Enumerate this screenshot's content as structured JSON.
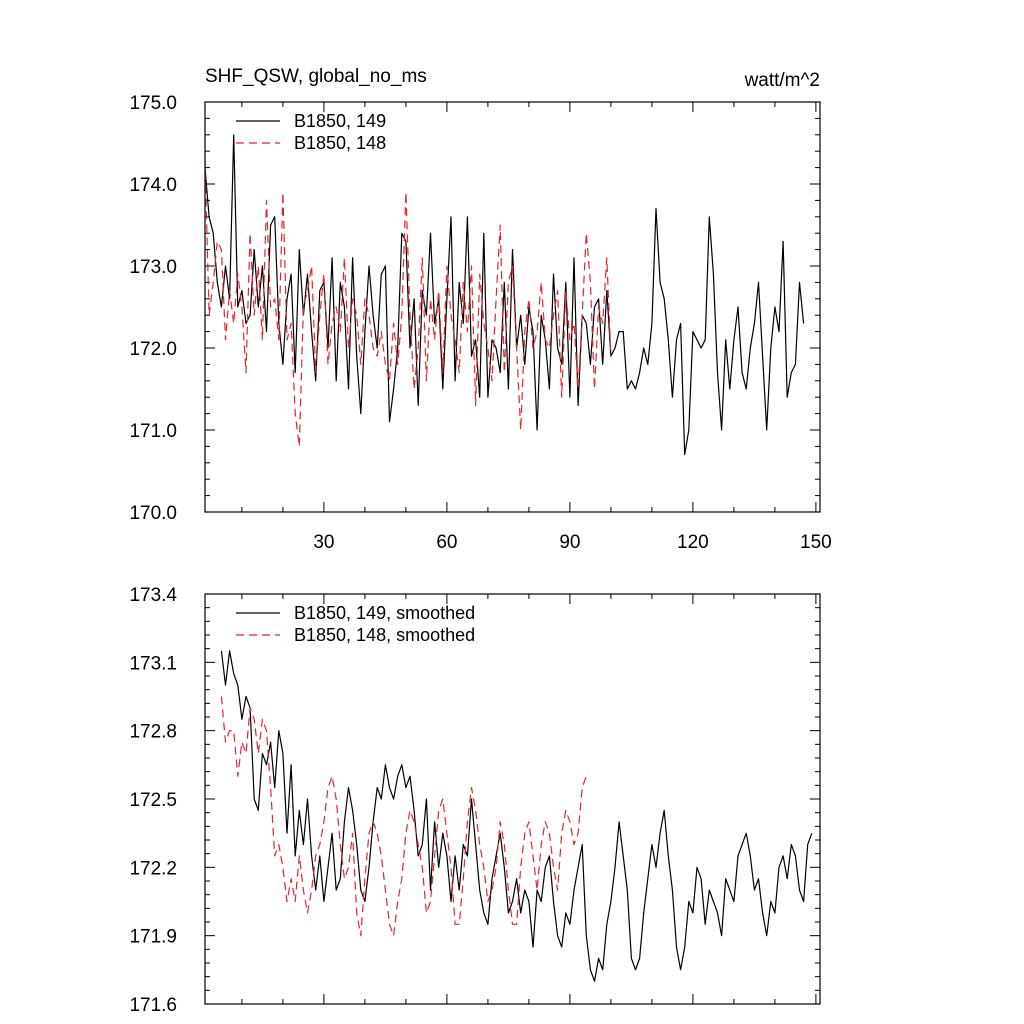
{
  "chart_data": [
    {
      "type": "line",
      "title": "SHF_QSW, global_no_ms",
      "units": "watt/m^2",
      "xlim": [
        1,
        151
      ],
      "ylim": [
        170.0,
        175.0
      ],
      "xticks": [
        30,
        60,
        90,
        120,
        150
      ],
      "xtick_labels": [
        "30",
        "60",
        "90",
        "120",
        "150"
      ],
      "yticks": [
        170.0,
        171.0,
        172.0,
        173.0,
        174.0,
        175.0
      ],
      "ytick_labels": [
        "170.0",
        "171.0",
        "172.0",
        "173.0",
        "174.0",
        "175.0"
      ],
      "legend_position": "top-left",
      "series": [
        {
          "name": "B1850, 149",
          "color": "#000000",
          "dash": "solid",
          "x_start": 1,
          "values": [
            174.2,
            173.6,
            173.4,
            172.8,
            172.5,
            173.0,
            172.6,
            174.6,
            172.5,
            172.7,
            172.3,
            172.4,
            173.2,
            172.5,
            173.0,
            172.2,
            173.5,
            173.6,
            172.3,
            171.8,
            172.6,
            172.9,
            171.7,
            173.2,
            172.4,
            172.9,
            172.2,
            171.6,
            172.7,
            172.8,
            172.0,
            173.1,
            171.6,
            172.8,
            172.5,
            171.5,
            173.1,
            171.9,
            171.2,
            172.2,
            173.0,
            172.4,
            172.0,
            172.9,
            173.0,
            171.1,
            171.5,
            172.0,
            173.4,
            173.3,
            172.0,
            172.6,
            171.3,
            172.7,
            172.4,
            173.4,
            172.3,
            172.6,
            171.5,
            172.6,
            173.6,
            171.6,
            172.8,
            172.3,
            173.6,
            171.9,
            172.1,
            171.4,
            173.4,
            171.4,
            172.1,
            172.0,
            171.7,
            172.8,
            171.5,
            173.2,
            172.0,
            172.4,
            171.8,
            172.5,
            172.2,
            171.0,
            172.4,
            172.1,
            171.5,
            172.9,
            172.0,
            171.8,
            172.8,
            171.4,
            173.1,
            171.3,
            172.4,
            172.3,
            171.8,
            172.5,
            172.6,
            171.8,
            172.7,
            171.9,
            172.0,
            172.2,
            172.2,
            171.5,
            171.6,
            171.5,
            171.7,
            172.0,
            171.8,
            172.3,
            173.7,
            172.8,
            172.6,
            172.1,
            171.4,
            172.1,
            172.3,
            170.7,
            171.0,
            172.2,
            172.1,
            172.0,
            172.1,
            173.6,
            172.9,
            171.7,
            171.0,
            172.1,
            171.5,
            172.1,
            172.5,
            171.7,
            171.5,
            172.0,
            172.3,
            172.8,
            171.9,
            171.0,
            172.0,
            172.5,
            172.2,
            173.3,
            171.4,
            171.7,
            171.8,
            172.8,
            172.3
          ]
        },
        {
          "name": "B1850, 148",
          "color": "#e8242c",
          "dash": "dashed",
          "x_start": 1,
          "values": [
            174.3,
            172.4,
            172.8,
            173.3,
            173.2,
            172.1,
            172.7,
            172.3,
            172.9,
            172.5,
            171.7,
            173.4,
            172.4,
            173.0,
            172.1,
            173.8,
            172.5,
            172.6,
            172.1,
            173.9,
            172.1,
            172.3,
            171.2,
            170.8,
            172.5,
            172.7,
            173.0,
            171.7,
            172.4,
            172.9,
            171.8,
            172.3,
            172.5,
            172.2,
            173.1,
            172.0,
            172.6,
            172.4,
            171.8,
            172.6,
            172.4,
            172.0,
            171.9,
            172.2,
            171.8,
            171.6,
            172.3,
            171.8,
            172.4,
            173.9,
            172.4,
            171.5,
            172.0,
            173.1,
            171.6,
            172.6,
            172.1,
            172.7,
            171.7,
            173.0,
            172.4,
            172.1,
            171.7,
            172.8,
            172.2,
            173.0,
            171.3,
            172.9,
            172.3,
            172.0,
            171.6,
            172.6,
            173.5,
            171.7,
            172.8,
            173.0,
            172.0,
            171.0,
            172.2,
            172.6,
            172.0,
            172.2,
            172.8,
            172.1,
            172.0,
            172.4,
            172.7,
            171.4,
            172.7,
            172.1,
            172.3,
            171.5,
            172.4,
            173.4,
            172.8,
            171.5,
            172.5,
            172.3,
            173.1,
            171.9
          ]
        }
      ]
    },
    {
      "type": "line",
      "xlim": [
        1,
        151
      ],
      "ylim": [
        171.6,
        173.4
      ],
      "xticks": [
        30,
        60,
        90,
        120,
        150
      ],
      "xtick_labels": [],
      "yticks": [
        171.6,
        171.9,
        172.2,
        172.5,
        172.8,
        173.1,
        173.4
      ],
      "ytick_labels": [
        "171.6",
        "171.9",
        "172.2",
        "172.5",
        "172.8",
        "173.1",
        "173.4"
      ],
      "legend_position": "top-left",
      "series": [
        {
          "name": "B1850, 149, smoothed",
          "color": "#000000",
          "dash": "solid",
          "x_start": 5,
          "values": [
            173.15,
            173.0,
            173.15,
            173.05,
            173.0,
            172.85,
            172.95,
            172.9,
            172.5,
            172.45,
            172.7,
            172.65,
            172.75,
            172.55,
            172.8,
            172.7,
            172.35,
            172.65,
            172.25,
            172.45,
            172.3,
            172.5,
            172.25,
            172.1,
            172.25,
            172.05,
            172.2,
            172.35,
            172.1,
            172.15,
            172.4,
            172.55,
            172.45,
            172.3,
            172.1,
            172.05,
            172.2,
            172.4,
            172.55,
            172.5,
            172.65,
            172.55,
            172.5,
            172.6,
            172.65,
            172.55,
            172.6,
            172.45,
            172.25,
            172.3,
            172.5,
            172.1,
            172.4,
            172.2,
            172.35,
            172.25,
            172.05,
            172.25,
            172.1,
            172.3,
            172.25,
            172.5,
            172.3,
            172.1,
            172.0,
            171.95,
            172.15,
            172.25,
            172.35,
            172.2,
            172.0,
            172.05,
            172.15,
            172.0,
            172.1,
            172.05,
            171.85,
            172.1,
            172.05,
            172.2,
            172.25,
            172.05,
            171.9,
            171.85,
            172.0,
            171.95,
            172.1,
            172.2,
            172.3,
            171.9,
            171.75,
            171.7,
            171.8,
            171.75,
            171.95,
            172.05,
            172.2,
            172.4,
            172.25,
            172.1,
            171.8,
            171.75,
            171.8,
            172.0,
            172.15,
            172.3,
            172.2,
            172.35,
            172.45,
            172.25,
            172.1,
            171.85,
            171.75,
            171.85,
            172.05,
            172.0,
            172.2,
            172.15,
            171.95,
            172.1,
            172.05,
            172.0,
            171.9,
            172.15,
            172.1,
            172.05,
            172.25,
            172.3,
            172.35,
            172.25,
            172.1,
            172.15,
            172.0,
            171.9,
            172.05,
            172.0,
            172.2,
            172.25,
            172.15,
            172.3,
            172.25,
            172.1,
            172.05,
            172.3,
            172.35
          ]
        },
        {
          "name": "B1850, 148, smoothed",
          "color": "#e8242c",
          "dash": "dashed",
          "x_start": 5,
          "values": [
            172.95,
            172.75,
            172.8,
            172.8,
            172.6,
            172.75,
            172.7,
            172.9,
            172.85,
            172.7,
            172.85,
            172.8,
            172.55,
            172.25,
            172.3,
            172.2,
            172.05,
            172.15,
            172.05,
            172.25,
            172.1,
            172.0,
            172.1,
            172.25,
            172.3,
            172.4,
            172.55,
            172.6,
            172.5,
            172.3,
            172.15,
            172.2,
            172.35,
            172.0,
            171.9,
            172.15,
            172.35,
            172.4,
            172.35,
            172.25,
            172.1,
            171.95,
            171.9,
            172.05,
            172.15,
            172.35,
            172.45,
            172.4,
            172.3,
            172.2,
            172.0,
            172.05,
            172.25,
            172.45,
            172.5,
            172.35,
            172.2,
            171.95,
            171.95,
            172.15,
            172.4,
            172.55,
            172.45,
            172.3,
            172.2,
            172.05,
            172.1,
            172.2,
            172.4,
            172.3,
            172.1,
            171.95,
            171.95,
            172.2,
            172.35,
            172.4,
            172.25,
            172.1,
            172.3,
            172.4,
            172.35,
            172.2,
            172.1,
            172.35,
            172.45,
            172.4,
            172.3,
            172.35,
            172.55,
            172.6
          ]
        }
      ]
    }
  ]
}
